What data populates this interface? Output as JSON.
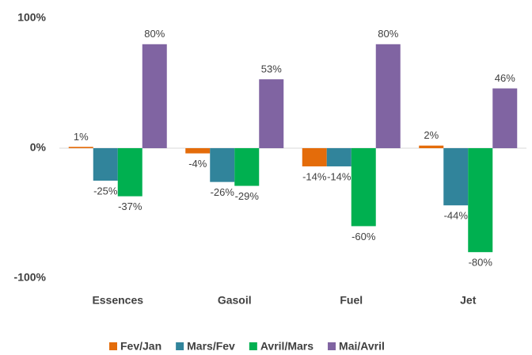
{
  "chart_data": {
    "type": "bar",
    "categories": [
      "Essences",
      "Gasoil",
      "Fuel",
      "Jet"
    ],
    "series": [
      {
        "name": "Fev/Jan",
        "color": "#e46c0a",
        "values": [
          1,
          -4,
          -14,
          2
        ],
        "value_labels": [
          "1%",
          "-4%",
          "-14%",
          "2%"
        ]
      },
      {
        "name": "Mars/Fev",
        "color": "#31849b",
        "values": [
          -25,
          -26,
          -14,
          -44
        ],
        "value_labels": [
          "-25%",
          "-26%",
          "-14%",
          "-44%"
        ]
      },
      {
        "name": "Avril/Mars",
        "color": "#00b050",
        "values": [
          -37,
          -29,
          -60,
          -80
        ],
        "value_labels": [
          "-37%",
          "-29%",
          "-60%",
          "-80%"
        ]
      },
      {
        "name": "Mai/Avril",
        "color": "#8064a2",
        "values": [
          80,
          53,
          80,
          46
        ],
        "value_labels": [
          "80%",
          "53%",
          "80%",
          "46%"
        ]
      }
    ],
    "ylim": [
      -100,
      100
    ],
    "yticks": [
      {
        "value": -100,
        "label": "-100%"
      },
      {
        "value": 0,
        "label": "0%"
      },
      {
        "value": 100,
        "label": "100%"
      }
    ],
    "grid": false,
    "legend": "bottom"
  }
}
